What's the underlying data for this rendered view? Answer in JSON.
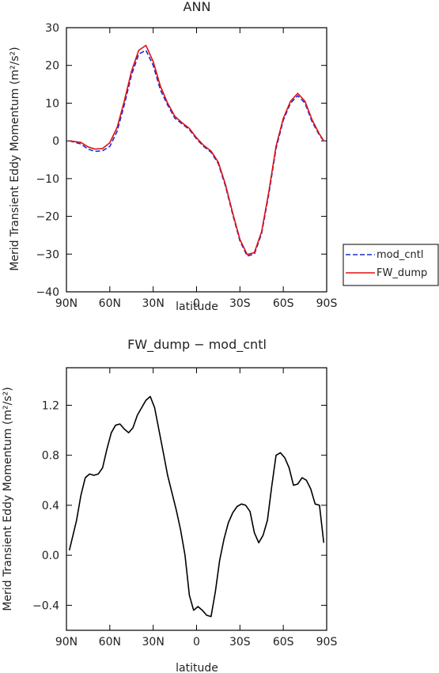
{
  "colors": {
    "mod_cntl": "#1f2bd6",
    "FW_dump": "#e01010",
    "diff": "#000000"
  },
  "chart_data": [
    {
      "type": "line",
      "title": "ANN",
      "xlabel": "latitude",
      "ylabel": "Merid Transient Eddy Momentum (m²/s²)",
      "xlim": [
        90,
        -90
      ],
      "ylim": [
        -40,
        30
      ],
      "xticks": [
        90,
        60,
        30,
        0,
        -30,
        -60,
        -90
      ],
      "xtick_labels": [
        "90N",
        "60N",
        "30N",
        "0",
        "30S",
        "60S",
        "90S"
      ],
      "yticks": [
        -40,
        -30,
        -20,
        -10,
        0,
        10,
        20,
        30
      ],
      "ytick_labels": [
        "−40",
        "−30",
        "−20",
        "−10",
        "0",
        "10",
        "20",
        "30"
      ],
      "legend": "right",
      "series": [
        {
          "name": "mod_cntl",
          "style": "dashed",
          "x": [
            88,
            80,
            75,
            70,
            65,
            60,
            55,
            50,
            45,
            40,
            35,
            30,
            25,
            20,
            15,
            10,
            5,
            0,
            -5,
            -10,
            -15,
            -20,
            -25,
            -30,
            -35,
            -40,
            -45,
            -50,
            -55,
            -60,
            -65,
            -70,
            -75,
            -80,
            -85,
            -88
          ],
          "y": [
            0,
            -0.8,
            -2.2,
            -2.8,
            -2.6,
            -1.5,
            2.5,
            9.5,
            17.5,
            23,
            24,
            20,
            13.5,
            9.5,
            6,
            4.5,
            3,
            0.5,
            -1.5,
            -3,
            -6,
            -12,
            -19.5,
            -26.5,
            -30.5,
            -30,
            -24.5,
            -14,
            -2,
            5.5,
            10,
            12,
            10,
            5,
            1.5,
            0
          ]
        },
        {
          "name": "FW_dump",
          "style": "solid",
          "x": [
            88,
            80,
            75,
            70,
            65,
            60,
            55,
            50,
            45,
            40,
            35,
            30,
            25,
            20,
            15,
            10,
            5,
            0,
            -5,
            -10,
            -15,
            -20,
            -25,
            -30,
            -35,
            -40,
            -45,
            -50,
            -55,
            -60,
            -65,
            -70,
            -75,
            -80,
            -85,
            -88
          ],
          "y": [
            0,
            -0.4,
            -1.6,
            -2.2,
            -2,
            -0.5,
            3.5,
            10.5,
            18.5,
            24,
            25.3,
            21,
            14.5,
            10,
            6.5,
            4.8,
            3.3,
            0.8,
            -1.2,
            -2.7,
            -5.6,
            -11.6,
            -19.1,
            -26.1,
            -30.1,
            -29.6,
            -24,
            -13.4,
            -1.4,
            6,
            10.5,
            12.6,
            10.5,
            5.5,
            1.8,
            0
          ]
        }
      ]
    },
    {
      "type": "line",
      "title": "FW_dump − mod_cntl",
      "xlabel": "latitude",
      "ylabel": "Merid Transient Eddy Momentum (m²/s²)",
      "xlim": [
        90,
        -90
      ],
      "ylim": [
        -0.6,
        1.5
      ],
      "xticks": [
        90,
        60,
        30,
        0,
        -30,
        -60,
        -90
      ],
      "xtick_labels": [
        "90N",
        "60N",
        "30N",
        "0",
        "30S",
        "60S",
        "90S"
      ],
      "yticks": [
        -0.4,
        0.0,
        0.4,
        0.8,
        1.2
      ],
      "ytick_labels": [
        "−0.4",
        "0.0",
        "0.4",
        "0.8",
        "1.2"
      ],
      "series": [
        {
          "x": [
            88,
            83,
            80,
            77,
            74,
            71,
            68,
            65,
            62,
            59,
            56,
            53,
            50,
            47,
            44,
            41,
            38,
            35,
            32,
            29,
            26,
            23,
            20,
            17,
            14,
            11,
            8,
            5,
            2,
            -1,
            -4,
            -7,
            -10,
            -13,
            -16,
            -19,
            -22,
            -25,
            -28,
            -31,
            -34,
            -37,
            -40,
            -43,
            -46,
            -49,
            -52,
            -55,
            -58,
            -61,
            -64,
            -67,
            -70,
            -73,
            -76,
            -79,
            -82,
            -85,
            -88
          ],
          "y": [
            0.04,
            0.28,
            0.48,
            0.62,
            0.65,
            0.64,
            0.65,
            0.7,
            0.85,
            0.98,
            1.04,
            1.05,
            1.01,
            0.98,
            1.02,
            1.12,
            1.18,
            1.24,
            1.27,
            1.18,
            1.0,
            0.82,
            0.64,
            0.5,
            0.36,
            0.2,
            0.0,
            -0.32,
            -0.44,
            -0.41,
            -0.44,
            -0.48,
            -0.49,
            -0.29,
            -0.04,
            0.13,
            0.26,
            0.34,
            0.39,
            0.41,
            0.4,
            0.35,
            0.18,
            0.1,
            0.16,
            0.28,
            0.55,
            0.8,
            0.82,
            0.78,
            0.7,
            0.56,
            0.57,
            0.62,
            0.6,
            0.53,
            0.41,
            0.4,
            0.1
          ]
        }
      ]
    }
  ]
}
